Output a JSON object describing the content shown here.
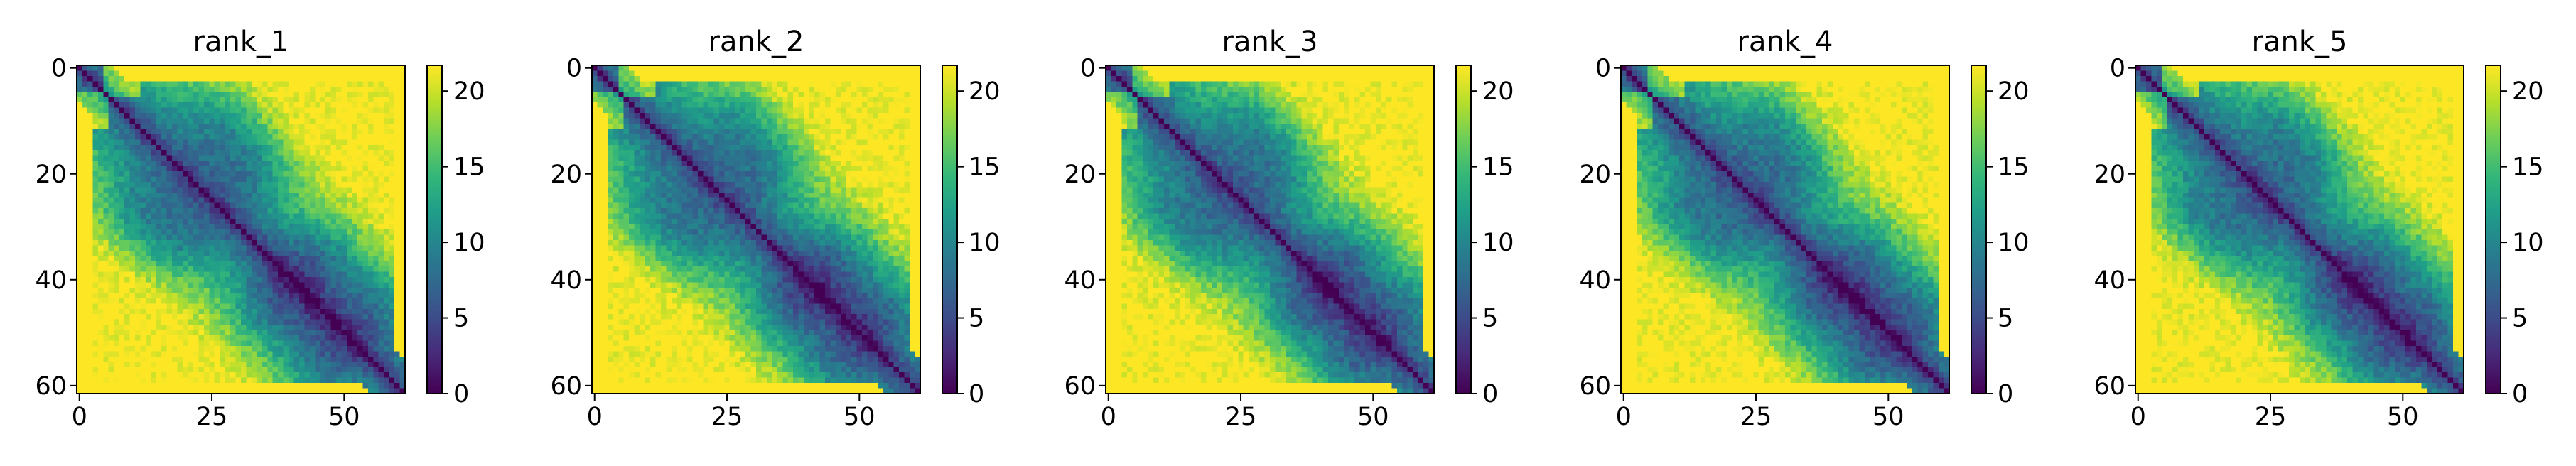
{
  "chart_data": [
    {
      "type": "heatmap",
      "title": "rank_1",
      "seed": 1,
      "matrix_size": 62,
      "xticks": [
        0,
        25,
        50
      ],
      "yticks": [
        0,
        20,
        40,
        60
      ],
      "colorbar_ticks": [
        0,
        5,
        10,
        15,
        20
      ],
      "clim": [
        0,
        21.7
      ],
      "colormap": "viridis"
    },
    {
      "type": "heatmap",
      "title": "rank_2",
      "seed": 2,
      "matrix_size": 62,
      "xticks": [
        0,
        25,
        50
      ],
      "yticks": [
        0,
        20,
        40,
        60
      ],
      "colorbar_ticks": [
        0,
        5,
        10,
        15,
        20
      ],
      "clim": [
        0,
        21.7
      ],
      "colormap": "viridis"
    },
    {
      "type": "heatmap",
      "title": "rank_3",
      "seed": 3,
      "matrix_size": 62,
      "xticks": [
        0,
        25,
        50
      ],
      "yticks": [
        0,
        20,
        40,
        60
      ],
      "colorbar_ticks": [
        0,
        5,
        10,
        15,
        20
      ],
      "clim": [
        0,
        21.7
      ],
      "colormap": "viridis"
    },
    {
      "type": "heatmap",
      "title": "rank_4",
      "seed": 4,
      "matrix_size": 62,
      "xticks": [
        0,
        25,
        50
      ],
      "yticks": [
        0,
        20,
        40,
        60
      ],
      "colorbar_ticks": [
        0,
        5,
        10,
        15,
        20
      ],
      "clim": [
        0,
        21.7
      ],
      "colormap": "viridis"
    },
    {
      "type": "heatmap",
      "title": "rank_5",
      "seed": 5,
      "matrix_size": 62,
      "xticks": [
        0,
        25,
        50
      ],
      "yticks": [
        0,
        20,
        40,
        60
      ],
      "colorbar_ticks": [
        0,
        5,
        10,
        15,
        20
      ],
      "clim": [
        0,
        21.7
      ],
      "colormap": "viridis"
    }
  ]
}
